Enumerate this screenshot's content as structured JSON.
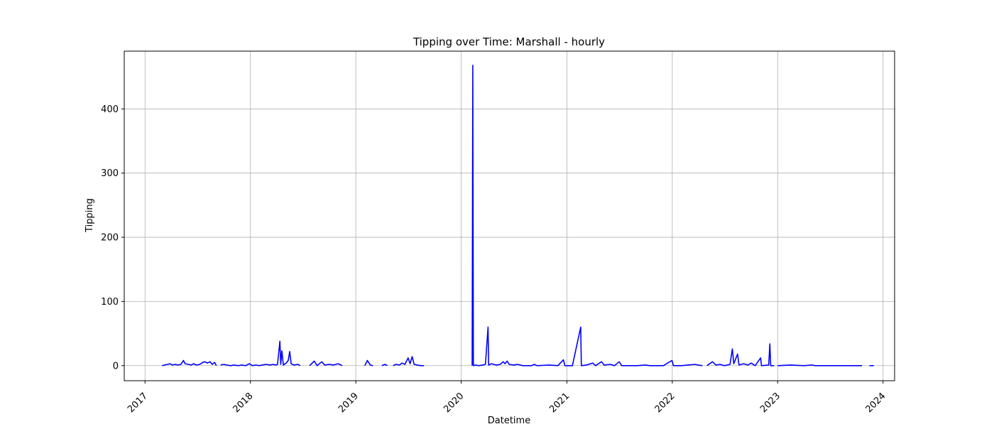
{
  "chart_data": {
    "type": "line",
    "title": "Tipping over Time: Marshall - hourly",
    "xlabel": "Datetime",
    "ylabel": "Tipping",
    "x_ticks": [
      "2017",
      "2018",
      "2019",
      "2020",
      "2021",
      "2022",
      "2023",
      "2024"
    ],
    "y_ticks": [
      0,
      100,
      200,
      300,
      400
    ],
    "xlim": [
      "2016-10-21",
      "2024-02-10"
    ],
    "ylim": [
      -23.5,
      490
    ],
    "grid": true,
    "line_color": "#0000ff",
    "series": [
      {
        "name": "",
        "segments": [
          [
            [
              "2017-03-01",
              0
            ],
            [
              "2017-03-10",
              1
            ],
            [
              "2017-03-20",
              2
            ],
            [
              "2017-03-28",
              3
            ],
            [
              "2017-04-05",
              1
            ],
            [
              "2017-04-15",
              2
            ],
            [
              "2017-04-25",
              1
            ],
            [
              "2017-05-05",
              2
            ],
            [
              "2017-05-14",
              8
            ],
            [
              "2017-05-20",
              3
            ],
            [
              "2017-06-01",
              2
            ],
            [
              "2017-06-10",
              1
            ],
            [
              "2017-06-18",
              3
            ],
            [
              "2017-06-28",
              1
            ],
            [
              "2017-07-10",
              2
            ],
            [
              "2017-07-20",
              5
            ],
            [
              "2017-07-28",
              6
            ],
            [
              "2017-08-05",
              4
            ],
            [
              "2017-08-14",
              6
            ],
            [
              "2017-08-22",
              2
            ],
            [
              "2017-08-30",
              5
            ],
            [
              "2017-09-05",
              0
            ]
          ],
          [
            [
              "2017-09-20",
              1
            ],
            [
              "2017-10-01",
              2
            ],
            [
              "2017-10-10",
              1
            ],
            [
              "2017-10-25",
              0
            ],
            [
              "2017-11-05",
              1
            ],
            [
              "2017-11-20",
              0
            ],
            [
              "2017-12-01",
              1
            ],
            [
              "2017-12-15",
              0
            ],
            [
              "2017-12-28",
              3
            ],
            [
              "2018-01-08",
              0
            ],
            [
              "2018-01-20",
              1
            ],
            [
              "2018-02-01",
              0
            ],
            [
              "2018-02-10",
              1
            ],
            [
              "2018-02-25",
              2
            ],
            [
              "2018-03-10",
              1
            ],
            [
              "2018-03-20",
              2
            ],
            [
              "2018-03-30",
              1
            ],
            [
              "2018-04-05",
              2
            ],
            [
              "2018-04-13",
              38
            ],
            [
              "2018-04-16",
              2
            ],
            [
              "2018-04-20",
              23
            ],
            [
              "2018-04-25",
              1
            ],
            [
              "2018-05-05",
              4
            ],
            [
              "2018-05-12",
              8
            ],
            [
              "2018-05-17",
              22
            ],
            [
              "2018-05-22",
              3
            ],
            [
              "2018-06-01",
              1
            ],
            [
              "2018-06-15",
              2
            ],
            [
              "2018-06-22",
              0
            ]
          ],
          [
            [
              "2018-07-25",
              0
            ],
            [
              "2018-08-10",
              7
            ],
            [
              "2018-08-20",
              0
            ],
            [
              "2018-09-05",
              6
            ],
            [
              "2018-09-15",
              1
            ],
            [
              "2018-10-01",
              2
            ],
            [
              "2018-10-15",
              1
            ],
            [
              "2018-11-01",
              3
            ],
            [
              "2018-11-15",
              0
            ]
          ],
          [
            [
              "2019-02-01",
              0
            ],
            [
              "2019-02-10",
              8
            ],
            [
              "2019-02-20",
              1
            ],
            [
              "2019-03-01",
              0
            ]
          ],
          [
            [
              "2019-04-01",
              0
            ],
            [
              "2019-04-12",
              2
            ],
            [
              "2019-04-20",
              0
            ]
          ],
          [
            [
              "2019-05-10",
              0
            ],
            [
              "2019-05-20",
              2
            ],
            [
              "2019-06-01",
              1
            ],
            [
              "2019-06-10",
              4
            ],
            [
              "2019-06-20",
              2
            ],
            [
              "2019-07-01",
              12
            ],
            [
              "2019-07-08",
              3
            ],
            [
              "2019-07-15",
              14
            ],
            [
              "2019-07-22",
              2
            ],
            [
              "2019-08-01",
              1
            ],
            [
              "2019-08-15",
              0
            ],
            [
              "2019-08-25",
              0
            ]
          ],
          [
            [
              "2020-02-08",
              0
            ],
            [
              "2020-02-10",
              468
            ],
            [
              "2020-02-12",
              0
            ],
            [
              "2020-02-20",
              1
            ],
            [
              "2020-03-01",
              0
            ],
            [
              "2020-03-15",
              1
            ],
            [
              "2020-03-25",
              2
            ],
            [
              "2020-04-03",
              60
            ],
            [
              "2020-04-05",
              1
            ],
            [
              "2020-04-15",
              3
            ],
            [
              "2020-05-01",
              1
            ],
            [
              "2020-05-15",
              2
            ],
            [
              "2020-05-25",
              6
            ],
            [
              "2020-06-01",
              3
            ],
            [
              "2020-06-08",
              7
            ],
            [
              "2020-06-15",
              2
            ],
            [
              "2020-07-01",
              1
            ],
            [
              "2020-07-15",
              2
            ],
            [
              "2020-08-01",
              0
            ],
            [
              "2020-09-01",
              0
            ],
            [
              "2020-09-10",
              2
            ],
            [
              "2020-09-20",
              0
            ],
            [
              "2020-11-01",
              1
            ],
            [
              "2020-12-01",
              0
            ],
            [
              "2020-12-20",
              9
            ],
            [
              "2020-12-25",
              0
            ],
            [
              "2021-01-20",
              0
            ],
            [
              "2021-02-18",
              60
            ],
            [
              "2021-02-20",
              0
            ],
            [
              "2021-03-10",
              1
            ],
            [
              "2021-04-01",
              4
            ],
            [
              "2021-04-10",
              0
            ],
            [
              "2021-05-01",
              6
            ],
            [
              "2021-05-10",
              1
            ],
            [
              "2021-06-01",
              2
            ],
            [
              "2021-06-15",
              0
            ],
            [
              "2021-07-01",
              6
            ],
            [
              "2021-07-10",
              0
            ],
            [
              "2021-09-01",
              0
            ],
            [
              "2021-10-01",
              1
            ],
            [
              "2021-10-15",
              0
            ],
            [
              "2021-12-01",
              0
            ],
            [
              "2021-12-31",
              8
            ],
            [
              "2022-01-05",
              0
            ],
            [
              "2022-02-01",
              0
            ],
            [
              "2022-03-20",
              2
            ],
            [
              "2022-04-01",
              1
            ],
            [
              "2022-04-15",
              0
            ]
          ],
          [
            [
              "2022-05-01",
              0
            ],
            [
              "2022-05-20",
              6
            ],
            [
              "2022-06-01",
              1
            ],
            [
              "2022-06-15",
              2
            ],
            [
              "2022-07-01",
              0
            ],
            [
              "2022-07-20",
              2
            ],
            [
              "2022-07-28",
              26
            ],
            [
              "2022-08-02",
              3
            ],
            [
              "2022-08-15",
              18
            ],
            [
              "2022-08-20",
              1
            ],
            [
              "2022-09-05",
              3
            ],
            [
              "2022-09-20",
              1
            ],
            [
              "2022-10-01",
              4
            ],
            [
              "2022-10-15",
              0
            ],
            [
              "2022-11-03",
              12
            ],
            [
              "2022-11-06",
              0
            ],
            [
              "2022-12-01",
              1
            ],
            [
              "2022-12-05",
              34
            ],
            [
              "2022-12-08",
              0
            ],
            [
              "2022-12-20",
              0
            ]
          ],
          [
            [
              "2023-01-01",
              0
            ],
            [
              "2023-02-15",
              1
            ],
            [
              "2023-04-01",
              0
            ],
            [
              "2023-05-01",
              1
            ],
            [
              "2023-05-10",
              0
            ],
            [
              "2023-08-01",
              0
            ],
            [
              "2023-10-20",
              0
            ]
          ],
          [
            [
              "2023-11-15",
              0
            ],
            [
              "2023-11-30",
              0
            ]
          ]
        ]
      }
    ]
  }
}
